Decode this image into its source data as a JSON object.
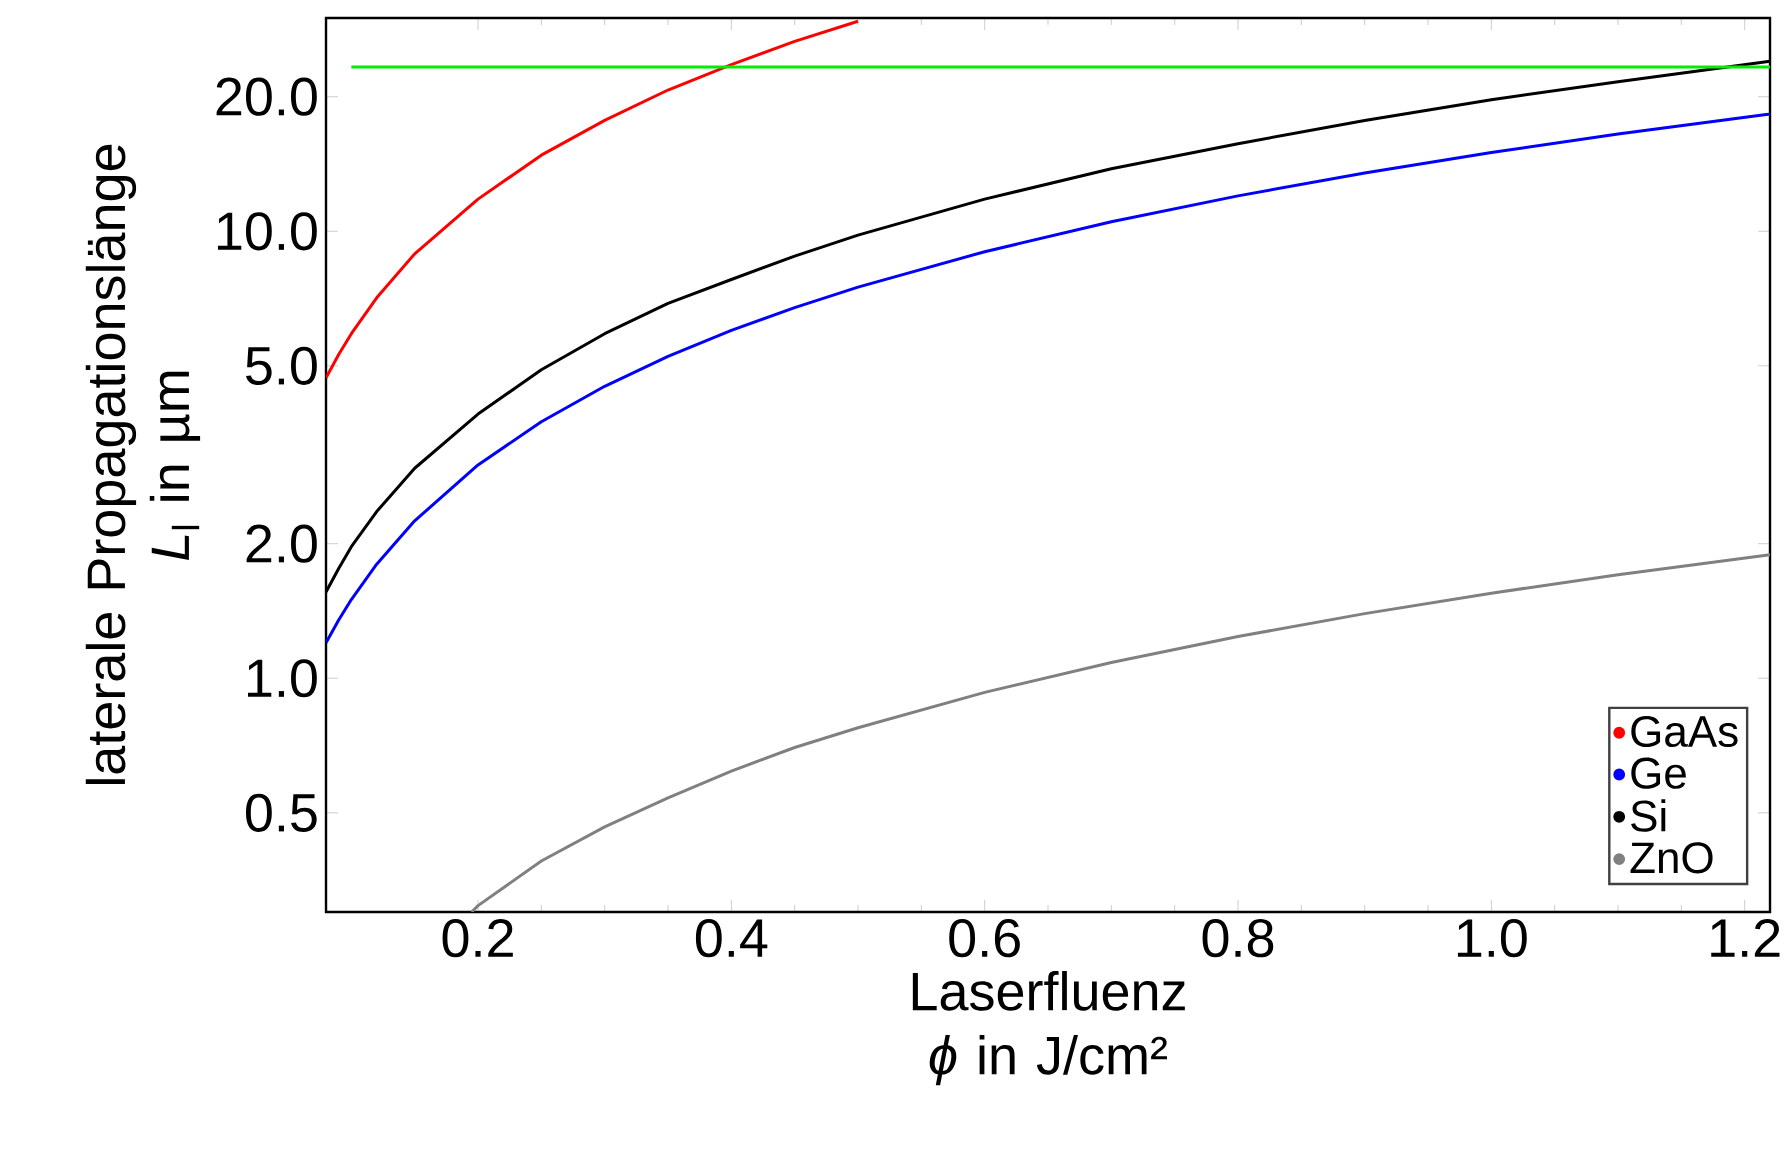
{
  "chart_data": {
    "type": "line",
    "xlabel": "Laserfluenz *ϕ* in J/cm²",
    "ylabel": "laterale Propagationslänge *L*$_{l}$ in µm",
    "log": "y",
    "legend": "bottom right",
    "marker": "none",
    "line_style": "solid",
    "xlim": [
      0.08,
      1.22
    ],
    "ylim": [
      0.3,
      30
    ],
    "xticks": [
      {
        "value": 0.2,
        "label": "0.2"
      },
      {
        "value": 0.4,
        "label": "0.4"
      },
      {
        "value": 0.6,
        "label": "0.6"
      },
      {
        "value": 0.8,
        "label": "0.8"
      },
      {
        "value": 1.0,
        "label": "1.0"
      },
      {
        "value": 1.2,
        "label": "1.2"
      }
    ],
    "yticks": [
      {
        "value": 0.5,
        "label": "0.5"
      },
      {
        "value": 1,
        "label": "1.0"
      },
      {
        "value": 2,
        "label": "2.0"
      },
      {
        "value": 5,
        "label": "5.0"
      },
      {
        "value": 10,
        "label": "10.0"
      },
      {
        "value": 20,
        "label": "20.0"
      }
    ],
    "series": [
      {
        "name": "GaAs",
        "color": "#ff0000",
        "x": [
          0.08,
          0.09,
          0.1,
          0.12,
          0.15,
          0.2,
          0.25,
          0.3,
          0.35,
          0.4,
          0.45,
          0.5
        ],
        "values": [
          4.7,
          5.3,
          5.9,
          7.1,
          8.9,
          11.8,
          14.8,
          17.7,
          20.7,
          23.6,
          26.6,
          29.5
        ]
      },
      {
        "name": "Ge",
        "color": "#0000ff",
        "x": [
          0.08,
          0.09,
          0.1,
          0.12,
          0.15,
          0.2,
          0.25,
          0.3,
          0.35,
          0.4,
          0.45,
          0.5,
          0.6,
          0.7,
          0.8,
          0.9,
          1.0,
          1.1,
          1.22
        ],
        "values": [
          1.2,
          1.35,
          1.5,
          1.8,
          2.25,
          3.0,
          3.75,
          4.5,
          5.25,
          6.0,
          6.75,
          7.5,
          9.0,
          10.5,
          12.0,
          13.5,
          15.0,
          16.5,
          18.3
        ]
      },
      {
        "name": "Si",
        "color": "#000000",
        "x": [
          0.08,
          0.09,
          0.1,
          0.12,
          0.15,
          0.2,
          0.25,
          0.3,
          0.35,
          0.4,
          0.45,
          0.5,
          0.6,
          0.7,
          0.8,
          0.9,
          1.0,
          1.1,
          1.22
        ],
        "values": [
          1.56,
          1.76,
          1.97,
          2.36,
          2.95,
          3.9,
          4.9,
          5.9,
          6.9,
          7.8,
          8.8,
          9.8,
          11.8,
          13.8,
          15.7,
          17.7,
          19.7,
          21.6,
          24.0
        ]
      },
      {
        "name": "ZnO",
        "color": "#808080",
        "x": [
          0.195,
          0.2,
          0.25,
          0.3,
          0.35,
          0.4,
          0.45,
          0.5,
          0.6,
          0.7,
          0.8,
          0.9,
          1.0,
          1.1,
          1.22
        ],
        "values": [
          0.3,
          0.31,
          0.39,
          0.465,
          0.54,
          0.62,
          0.7,
          0.775,
          0.93,
          1.085,
          1.24,
          1.395,
          1.55,
          1.705,
          1.89
        ]
      },
      {
        "color": "#00ee00",
        "x": [
          0.1,
          1.22
        ],
        "values": [
          23.3,
          23.3
        ]
      }
    ]
  }
}
